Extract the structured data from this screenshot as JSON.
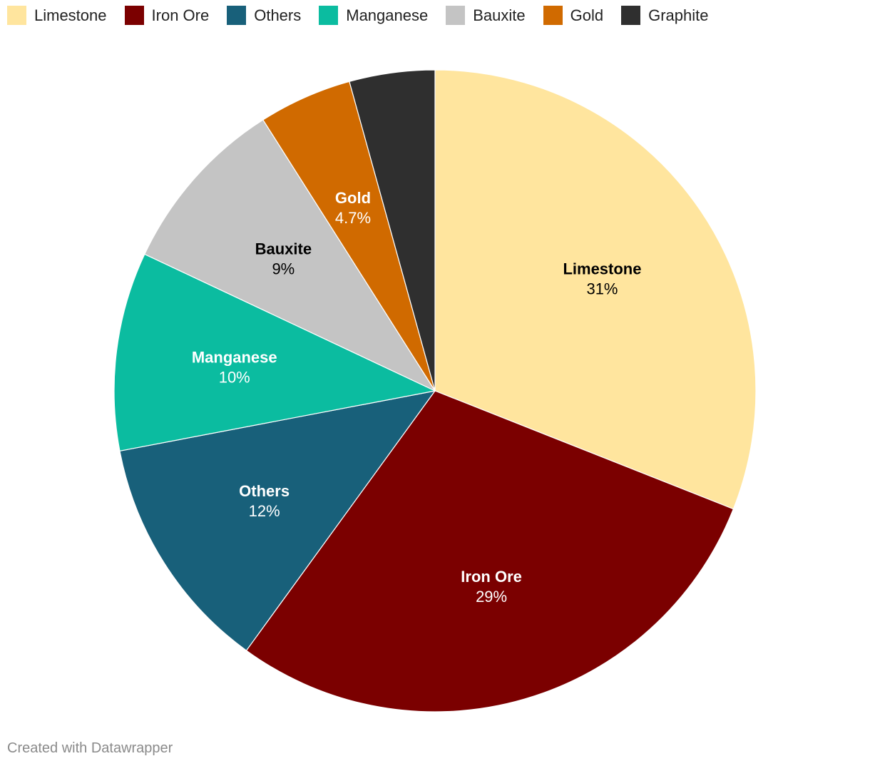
{
  "chart_data": {
    "type": "pie",
    "title": "",
    "legend_position": "top-left",
    "slices": [
      {
        "name": "Limestone",
        "value": 31,
        "label": "31%",
        "color": "#ffe59e",
        "label_color": "#000000"
      },
      {
        "name": "Iron Ore",
        "value": 29,
        "label": "29%",
        "color": "#7b0000",
        "label_color": "#ffffff"
      },
      {
        "name": "Others",
        "value": 12,
        "label": "12%",
        "color": "#18607a",
        "label_color": "#ffffff"
      },
      {
        "name": "Manganese",
        "value": 10,
        "label": "10%",
        "color": "#0bbca0",
        "label_color": "#ffffff"
      },
      {
        "name": "Bauxite",
        "value": 9,
        "label": "9%",
        "color": "#c4c4c4",
        "label_color": "#000000"
      },
      {
        "name": "Gold",
        "value": 4.7,
        "label": "4.7%",
        "color": "#d06a00",
        "label_color": "#ffffff"
      },
      {
        "name": "Graphite",
        "value": 4.3,
        "label": "",
        "color": "#2f2f2f",
        "label_color": "#ffffff"
      }
    ]
  },
  "footer": {
    "credit": "Created with Datawrapper"
  }
}
